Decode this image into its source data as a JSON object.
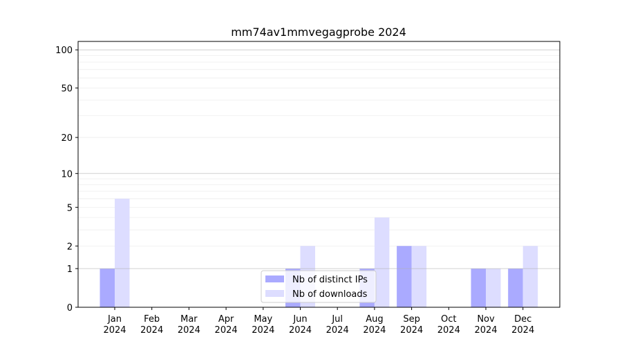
{
  "chart_data": {
    "type": "bar",
    "title": "mm74av1mmvegagprobe 2024",
    "xlabel": "",
    "ylabel": "",
    "categories": [
      "Jan\n2024",
      "Feb\n2024",
      "Mar\n2024",
      "Apr\n2024",
      "May\n2024",
      "Jun\n2024",
      "Jul\n2024",
      "Aug\n2024",
      "Sep\n2024",
      "Oct\n2024",
      "Nov\n2024",
      "Dec\n2024"
    ],
    "y_scale": "symlog (log of value+1)",
    "y_ticks": [
      0,
      1,
      2,
      5,
      10,
      20,
      50,
      100
    ],
    "ylim": [
      0,
      116
    ],
    "grid": true,
    "legend_position": "lower-center",
    "series": [
      {
        "name": "Nb of distinct IPs",
        "color": "#aaaaff",
        "values": [
          1,
          0,
          0,
          0,
          0,
          1,
          0,
          1,
          2,
          0,
          1,
          1
        ]
      },
      {
        "name": "Nb of downloads",
        "color": "#ddddff",
        "values": [
          6,
          0,
          0,
          0,
          0,
          2,
          0,
          4,
          2,
          0,
          1,
          2
        ]
      }
    ]
  }
}
